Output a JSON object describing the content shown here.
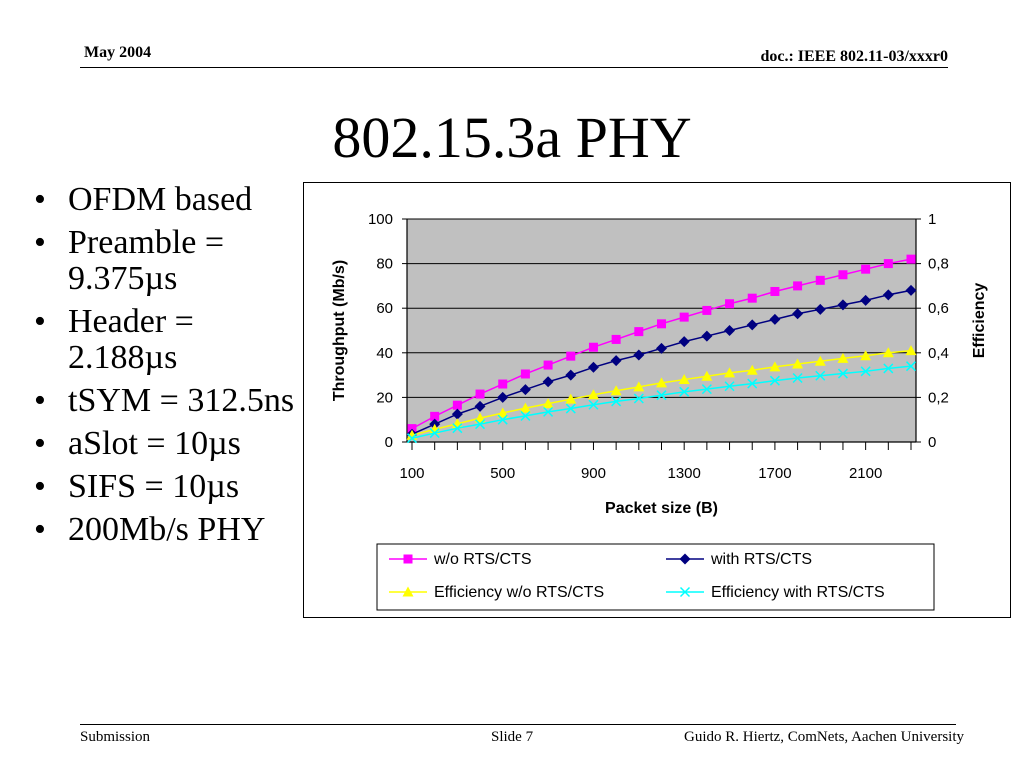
{
  "header": {
    "date": "May 2004",
    "doc": "doc.: IEEE 802.11-03/xxxr0"
  },
  "title": "802.15.3a PHY",
  "bullets": [
    "OFDM based",
    "Preamble = 9.375µs",
    "Header = 2.188µs",
    "tSYM = 312.5ns",
    "aSlot = 10µs",
    "SIFS = 10µs",
    "200Mb/s PHY"
  ],
  "footer": {
    "left": "Submission",
    "center": "Slide 7",
    "right": "Guido R. Hiertz, ComNets, Aachen University"
  },
  "chart_data": {
    "type": "line",
    "xlabel": "Packet size (B)",
    "ylabel": "Throughput (Mb/s)",
    "y2label": "Efficiency",
    "xlim": [
      100,
      2300
    ],
    "ylim": [
      0,
      100
    ],
    "y2lim": [
      0,
      1
    ],
    "xticks": [
      100,
      500,
      900,
      1300,
      1700,
      2100
    ],
    "xtick_labels": [
      "100",
      "500",
      "900",
      "1300",
      "1700",
      "2100"
    ],
    "yticks": [
      0,
      20,
      40,
      60,
      80,
      100
    ],
    "ytick_labels": [
      "0",
      "20",
      "40",
      "60",
      "80",
      "100"
    ],
    "y2ticks": [
      0,
      0.2,
      0.4,
      0.6,
      0.8,
      1
    ],
    "y2tick_labels": [
      "0",
      "0,2",
      "0,4",
      "0,6",
      "0,8",
      "1"
    ],
    "grid": true,
    "plot_background": "#c0c0c0",
    "legend_position": "bottom",
    "x": [
      100,
      200,
      300,
      400,
      500,
      600,
      700,
      800,
      900,
      1000,
      1100,
      1200,
      1300,
      1400,
      1500,
      1600,
      1700,
      1800,
      1900,
      2000,
      2100,
      2200,
      2300
    ],
    "series": [
      {
        "name": "w/o RTS/CTS",
        "axis": "left",
        "color": "#ff00ff",
        "marker": "square",
        "values": [
          6,
          11.5,
          16.5,
          21.5,
          26,
          30.5,
          34.5,
          38.5,
          42.5,
          46,
          49.5,
          53,
          56,
          59,
          62,
          64.5,
          67.5,
          70,
          72.5,
          75,
          77.5,
          80,
          82
        ]
      },
      {
        "name": "with RTS/CTS",
        "axis": "left",
        "color": "#000080",
        "marker": "diamond",
        "values": [
          3.5,
          8,
          12.5,
          16,
          20,
          23.5,
          27,
          30,
          33.5,
          36.5,
          39,
          42,
          45,
          47.5,
          50,
          52.5,
          55,
          57.5,
          59.5,
          61.5,
          63.5,
          66,
          68
        ]
      },
      {
        "name": "Efficiency w/o RTS/CTS",
        "axis": "right",
        "color": "#ffff00",
        "marker": "triangle",
        "values": [
          0.03,
          0.057,
          0.082,
          0.107,
          0.13,
          0.152,
          0.172,
          0.192,
          0.212,
          0.23,
          0.247,
          0.265,
          0.28,
          0.295,
          0.31,
          0.322,
          0.337,
          0.35,
          0.362,
          0.375,
          0.387,
          0.4,
          0.41
        ]
      },
      {
        "name": "Efficiency with RTS/CTS",
        "axis": "right",
        "color": "#00ffff",
        "marker": "x",
        "values": [
          0.017,
          0.04,
          0.062,
          0.08,
          0.1,
          0.117,
          0.135,
          0.15,
          0.167,
          0.182,
          0.195,
          0.21,
          0.225,
          0.237,
          0.25,
          0.262,
          0.275,
          0.287,
          0.297,
          0.307,
          0.317,
          0.33,
          0.34
        ]
      }
    ]
  }
}
